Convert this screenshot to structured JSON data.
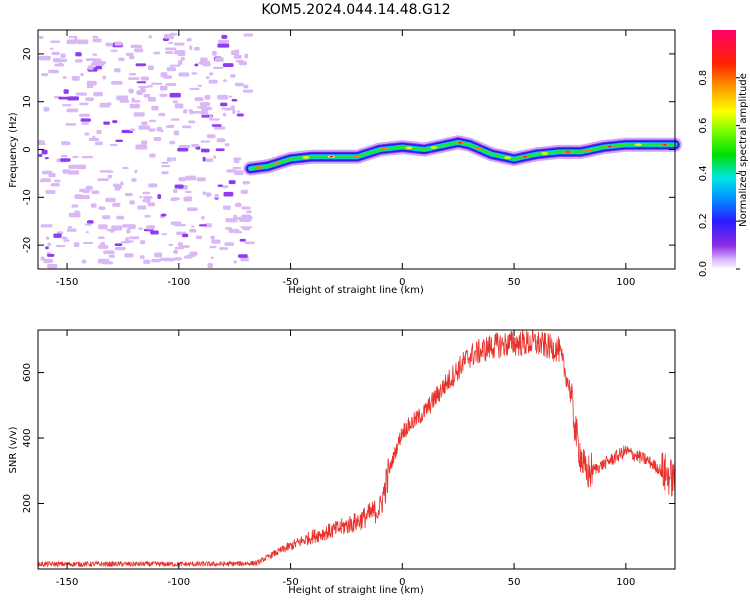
{
  "title": "KOM5.2024.044.14.48.G12",
  "chart_data": [
    {
      "type": "heatmap",
      "xlabel": "Height of straight line (km)",
      "ylabel": "Frequency (Hz)",
      "xlim": [
        -163,
        122
      ],
      "ylim": [
        -25,
        25
      ],
      "xticks": [
        -150,
        -100,
        -50,
        0,
        50,
        100
      ],
      "yticks": [
        -20,
        -10,
        0,
        10,
        20
      ],
      "noise_region": {
        "x_from": -163,
        "x_to": -67
      },
      "signal_track": {
        "x": [
          -68,
          -60,
          -50,
          -40,
          -30,
          -20,
          -10,
          0,
          10,
          20,
          25,
          30,
          40,
          50,
          60,
          70,
          80,
          90,
          100,
          110,
          122
        ],
        "frequency": [
          -4,
          -3.5,
          -2,
          -1.5,
          -1.5,
          -1.5,
          0,
          0.5,
          0,
          1,
          1.5,
          1,
          -1,
          -2,
          -1,
          -0.5,
          -0.5,
          0.5,
          1,
          1,
          1
        ]
      },
      "colorbar": {
        "label": "Normalized spectral amplitude",
        "range": [
          0,
          1
        ],
        "ticks": [
          "0.0",
          "0.2",
          "0.4",
          "0.6",
          "0.8"
        ]
      }
    },
    {
      "type": "line",
      "xlabel": "Height of straight line (km)",
      "ylabel": "SNR (v/v)",
      "xlim": [
        -163,
        122
      ],
      "ylim": [
        0,
        730
      ],
      "xticks": [
        -150,
        -100,
        -50,
        0,
        50,
        100
      ],
      "yticks": [
        200,
        400,
        600
      ],
      "color": "#e8312b",
      "series": [
        {
          "x": [
            -163,
            -140,
            -120,
            -100,
            -80,
            -65,
            -58,
            -50,
            -40,
            -30,
            -20,
            -10,
            -5,
            0,
            10,
            20,
            30,
            40,
            50,
            60,
            70,
            75,
            78,
            82,
            90,
            100,
            110,
            122
          ],
          "y": [
            15,
            15,
            15,
            15,
            15,
            18,
            45,
            70,
            100,
            120,
            145,
            185,
            320,
            420,
            480,
            570,
            650,
            680,
            690,
            690,
            670,
            550,
            400,
            290,
            320,
            360,
            330,
            270
          ]
        }
      ]
    }
  ]
}
